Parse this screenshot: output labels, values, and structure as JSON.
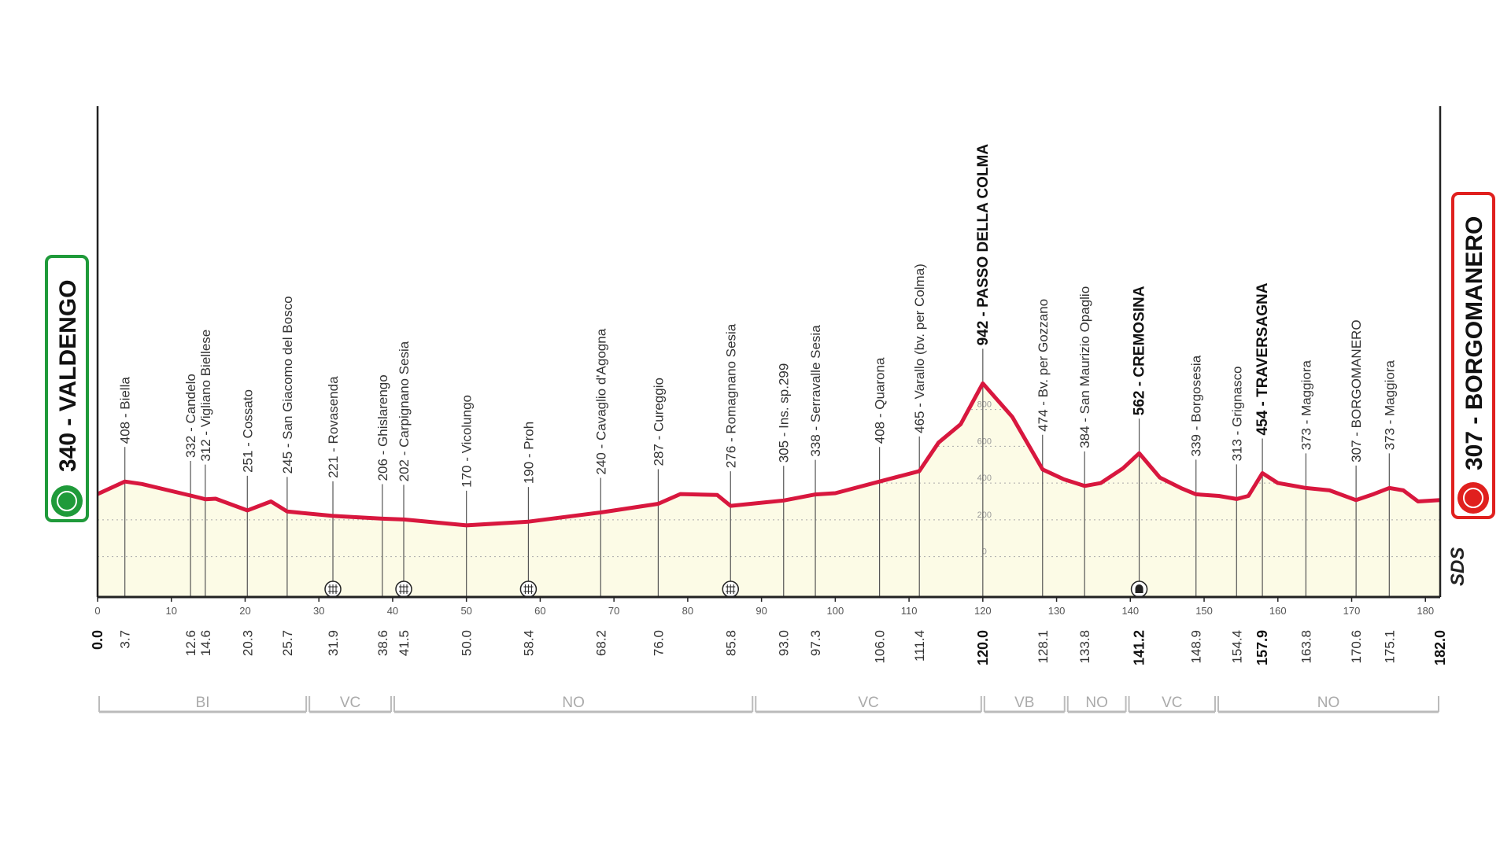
{
  "chart_data": {
    "type": "area",
    "start": {
      "label": "340 - VALDENGO",
      "color": "#1f9a3a"
    },
    "finish": {
      "label": "307 - BORGOMANERO",
      "color": "#e0201e"
    },
    "logo": "SDS",
    "color": "#d8173e",
    "fill": "#fcfbe6",
    "x": [
      0,
      3.7,
      6,
      12.6,
      14.6,
      16,
      20.3,
      23.5,
      25.7,
      31.9,
      38.6,
      41.5,
      50,
      58.4,
      68.2,
      76,
      79,
      84,
      85.8,
      93,
      97.3,
      100,
      106,
      111.4,
      114,
      117,
      120,
      124,
      128.1,
      131,
      133.8,
      136,
      139,
      141.2,
      144,
      147,
      148.9,
      152,
      154.4,
      156,
      157.9,
      160,
      163.8,
      167,
      170.6,
      173,
      175.1,
      177,
      179,
      182
    ],
    "values": [
      340,
      408,
      395,
      332,
      312,
      315,
      251,
      300,
      245,
      221,
      206,
      202,
      170,
      190,
      240,
      287,
      340,
      335,
      276,
      305,
      338,
      345,
      408,
      465,
      620,
      720,
      942,
      760,
      474,
      420,
      384,
      400,
      480,
      562,
      430,
      370,
      339,
      330,
      313,
      330,
      454,
      400,
      373,
      360,
      307,
      340,
      373,
      360,
      300,
      307
    ],
    "xlim": [
      0,
      182
    ],
    "ylim": [
      -220,
      2450
    ],
    "xticks": [
      0,
      10,
      20,
      30,
      40,
      50,
      60,
      70,
      80,
      90,
      100,
      110,
      120,
      130,
      140,
      150,
      160,
      170,
      180
    ],
    "yticks": [
      0,
      200,
      400,
      600,
      800
    ],
    "grid": true,
    "waypoints": [
      {
        "km": {
          "value": 0,
          "label": "0.0"
        },
        "bold": true
      },
      {
        "km": 3.7,
        "name": "408 - Biella"
      },
      {
        "km": 12.6,
        "name": "332 - Candelo"
      },
      {
        "km": 14.6,
        "name": "312 - Vigliano Biellese"
      },
      {
        "km": 20.3,
        "name": "251 - Cossato"
      },
      {
        "km": 25.7,
        "name": "245 - San Giacomo del Bosco"
      },
      {
        "km": 31.9,
        "name": "221 - Rovasenda",
        "icon": "rail"
      },
      {
        "km": 38.6,
        "name": "206 - Ghislarengo"
      },
      {
        "km": 41.5,
        "name": "202 - Carpignano Sesia",
        "icon": "rail"
      },
      {
        "km": {
          "value": 50,
          "label": "50.0"
        },
        "name": "170 - Vicolungo"
      },
      {
        "km": 58.4,
        "name": "190 - Proh",
        "icon": "rail"
      },
      {
        "km": 68.2,
        "name": "240 - Cavaglio d'Agogna"
      },
      {
        "km": {
          "value": 76,
          "label": "76.0"
        },
        "name": "287 - Cureggio"
      },
      {
        "km": 85.8,
        "name": "276 - Romagnano Sesia",
        "icon": "rail"
      },
      {
        "km": {
          "value": 93,
          "label": "93.0"
        },
        "name": "305 - Ins. sp.299"
      },
      {
        "km": 97.3,
        "name": "338 - Serravalle Sesia"
      },
      {
        "km": {
          "value": 106,
          "label": "106.0"
        },
        "name": "408 - Quarona"
      },
      {
        "km": 111.4,
        "name": "465 - Varallo (bv. per Colma)"
      },
      {
        "km": {
          "value": 120,
          "label": "120.0"
        },
        "name": "942 - PASSO DELLA COLMA",
        "bold": true
      },
      {
        "km": 128.1,
        "name": "474 - Bv. per Gozzano"
      },
      {
        "km": 133.8,
        "name": "384 - San Maurizio Opaglio"
      },
      {
        "km": 141.2,
        "name": "562 - CREMOSINA",
        "bold": true,
        "icon": "tunnel"
      },
      {
        "km": 148.9,
        "name": "339 - Borgosesia"
      },
      {
        "km": 154.4,
        "name": "313 - Grignasco"
      },
      {
        "km": 157.9,
        "name": "454 - TRAVERSAGNA",
        "bold": true
      },
      {
        "km": 163.8,
        "name": "373 - Maggiora"
      },
      {
        "km": 170.6,
        "name": "307 - BORGOMANERO"
      },
      {
        "km": 175.1,
        "name": "373 - Maggiora"
      },
      {
        "km": {
          "value": 182,
          "label": "182.0"
        },
        "bold": true
      }
    ],
    "regions": [
      {
        "name": "BI",
        "from": 0,
        "to": 28.5
      },
      {
        "name": "VC",
        "from": 28.5,
        "to": 40
      },
      {
        "name": "NO",
        "from": 40,
        "to": 89
      },
      {
        "name": "VC",
        "from": 89,
        "to": 120
      },
      {
        "name": "VB",
        "from": 120,
        "to": 131.3
      },
      {
        "name": "NO",
        "from": 131.3,
        "to": 139.6
      },
      {
        "name": "VC",
        "from": 139.6,
        "to": 151.7
      },
      {
        "name": "NO",
        "from": 151.7,
        "to": 182
      }
    ]
  }
}
